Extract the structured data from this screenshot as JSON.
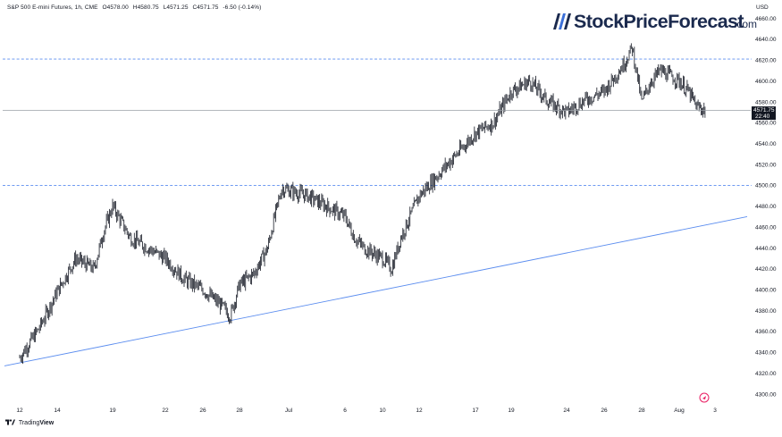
{
  "legend": {
    "symbol": "S&P 500 E-mini Futures, 1h, CME",
    "open": "O4578.00",
    "high": "H4580.75",
    "low": "L4571.25",
    "close": "C4571.75",
    "change": "-6.50 (-0.14%)"
  },
  "brand": {
    "name": "StockPriceForecast",
    "suffix": ".com"
  },
  "footer": {
    "logo_icon": "tradingview-logo-icon",
    "text_trading": "Trading",
    "text_view": "View"
  },
  "last_price": {
    "value": "4571.75",
    "countdown": "22:40"
  },
  "colors": {
    "background": "#ffffff",
    "candles": "#131722",
    "trendline": "#5b8def",
    "levels": "#5b8def",
    "price_tag": "#131722",
    "event_marker": "#e91e63"
  },
  "chart_data": {
    "type": "candlestick",
    "title": "S&P 500 E-mini Futures, 1h, CME",
    "xlabel": "",
    "ylabel": "USD",
    "ylim": [
      4294,
      4669
    ],
    "y_ticks": [
      4300,
      4320,
      4340,
      4360,
      4380,
      4400,
      4420,
      4440,
      4460,
      4480,
      4500,
      4520,
      4540,
      4560,
      4580,
      4600,
      4620,
      4640,
      4660
    ],
    "x_ticks": [
      "12",
      "14",
      "19",
      "22",
      "26",
      "28",
      "Jul",
      "6",
      "10",
      "12",
      "17",
      "19",
      "24",
      "26",
      "28",
      "Aug",
      "3"
    ],
    "horizontal_levels": [
      4621,
      4500
    ],
    "trendline": {
      "start": [
        "Jun 12",
        4327
      ],
      "end": [
        "Aug 3",
        4470
      ]
    },
    "series": [
      {
        "values": [
          [
            "Jun 12",
            4335
          ],
          [
            "Jun 13",
            4362
          ],
          [
            "Jun 14",
            4398
          ],
          [
            "Jun 15",
            4430
          ],
          [
            "Jun 16",
            4420
          ],
          [
            "Jun 16",
            4455
          ],
          [
            "Jun 19",
            4480
          ],
          [
            "Jun 20",
            4450
          ],
          [
            "Jun 21",
            4440
          ],
          [
            "Jun 22",
            4430
          ],
          [
            "Jun 23",
            4410
          ],
          [
            "Jun 26",
            4400
          ],
          [
            "Jun 27",
            4385
          ],
          [
            "Jun 27",
            4375
          ],
          [
            "Jun 28",
            4405
          ],
          [
            "Jun 29",
            4415
          ],
          [
            "Jun 30",
            4440
          ],
          [
            "Jun 30",
            4470
          ],
          [
            "Jul 3",
            4497
          ],
          [
            "Jul 5",
            4490
          ],
          [
            "Jul 6",
            4470
          ],
          [
            "Jul 6",
            4450
          ],
          [
            "Jul 7",
            4440
          ],
          [
            "Jul 10",
            4430
          ],
          [
            "Jul 10",
            4420
          ],
          [
            "Jul 11",
            4450
          ],
          [
            "Jul 12",
            4490
          ],
          [
            "Jul 13",
            4510
          ],
          [
            "Jul 14",
            4530
          ],
          [
            "Jul 17",
            4550
          ],
          [
            "Jul 18",
            4560
          ],
          [
            "Jul 19",
            4590
          ],
          [
            "Jul 20",
            4600
          ],
          [
            "Jul 21",
            4580
          ],
          [
            "Jul 24",
            4570
          ],
          [
            "Jul 25",
            4582
          ],
          [
            "Jul 26",
            4590
          ],
          [
            "Jul 27",
            4615
          ],
          [
            "Jul 27",
            4632
          ],
          [
            "Jul 28",
            4580
          ],
          [
            "Jul 28",
            4600
          ],
          [
            "Jul 31",
            4610
          ],
          [
            "Aug 1",
            4600
          ],
          [
            "Aug 1",
            4590
          ],
          [
            "Aug 2",
            4575
          ],
          [
            "Aug 2",
            4571.75
          ]
        ]
      }
    ]
  }
}
